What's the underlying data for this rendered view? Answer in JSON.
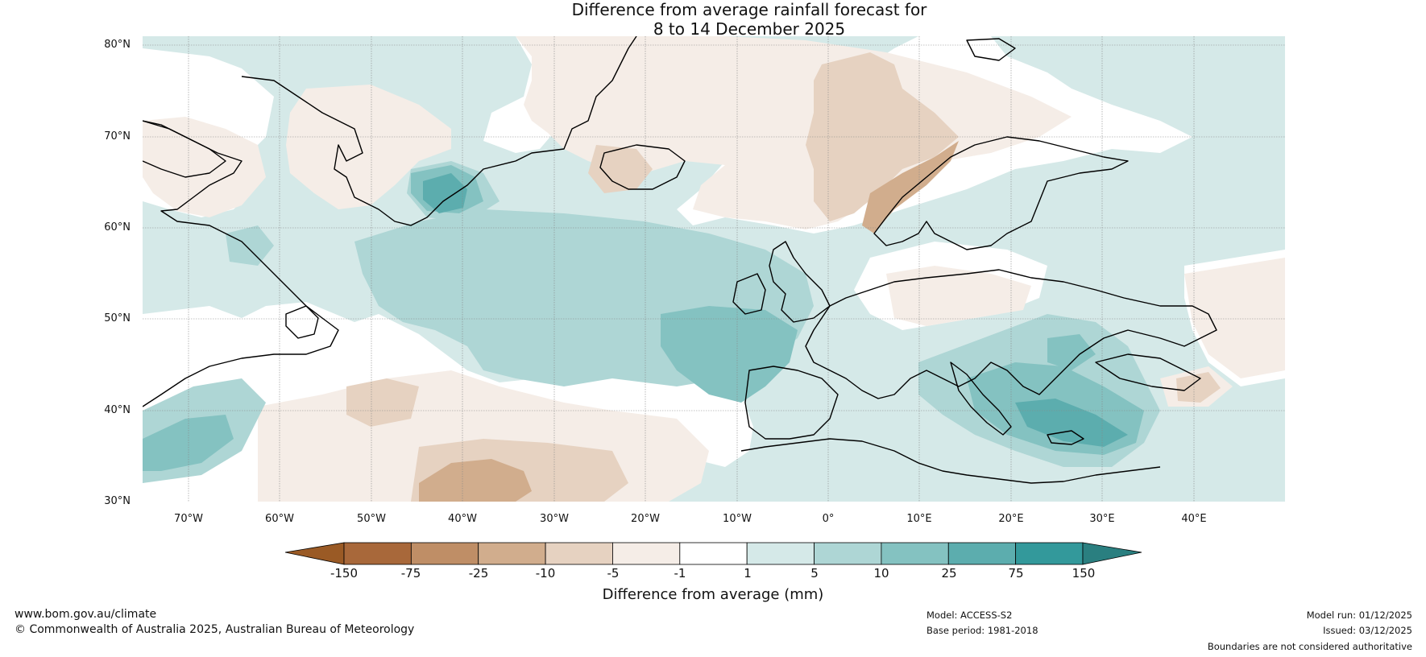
{
  "title": {
    "line1": "Difference from average rainfall forecast for",
    "line2": "8 to 14 December 2025"
  },
  "map": {
    "lat_labels": [
      "80°N",
      "70°N",
      "60°N",
      "50°N",
      "40°N",
      "30°N"
    ],
    "lon_labels": [
      "70°W",
      "60°W",
      "50°W",
      "40°W",
      "30°W",
      "20°W",
      "10°W",
      "0°",
      "10°E",
      "20°E",
      "30°E",
      "40°E"
    ]
  },
  "colorbar": {
    "bins": [
      "#a8683a",
      "#bf8e66",
      "#d1ad8d",
      "#e6d2c1",
      "#f5ede7",
      "#ffffff",
      "#d5e9e8",
      "#aed6d5",
      "#84c2c1",
      "#5cadae",
      "#33999b"
    ],
    "low_extend_color": "#9a5a25",
    "high_extend_color": "#2a7f80",
    "ticks": [
      "-150",
      "-75",
      "-25",
      "-10",
      "-5",
      "-1",
      "1",
      "5",
      "10",
      "25",
      "75",
      "150"
    ],
    "title": "Difference from average (mm)"
  },
  "footer": {
    "website": "www.bom.gov.au/climate",
    "copyright": "© Commonwealth of Australia 2025, Australian Bureau of Meteorology",
    "model": "Model: ACCESS-S2",
    "base_period": "Base period: 1981-2018",
    "model_run": "Model run: 01/12/2025",
    "issued": "Issued: 03/12/2025",
    "disclaimer": "Boundaries are not considered authoritative"
  }
}
